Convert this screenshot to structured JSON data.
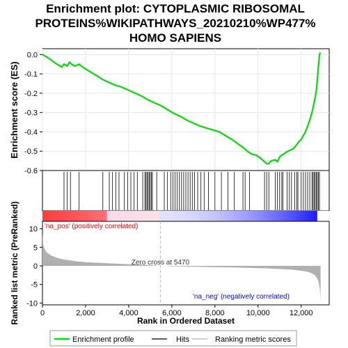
{
  "title_lines": [
    "Enrichment plot: CYTOPLASMIC RIBOSOMAL",
    "PROTEINS%WIKIPATHWAYS_20210210%WP477%",
    "HOMO SAPIENS"
  ],
  "colors": {
    "es_line": "#00dd00",
    "hits": "#000000",
    "metric_fill": "#b0b0b0",
    "pos_label": "#ff0000",
    "neg_label": "#0000ff",
    "grid": "#e6e6e6",
    "zero_cross": "#bbbbbb"
  },
  "chart_data": {
    "type": "line",
    "xlabel": "Rank in Ordered Dataset",
    "x_ticks": [
      0,
      2000,
      4000,
      6000,
      8000,
      10000,
      12000
    ],
    "x_tick_labels": [
      "0",
      "2,000",
      "4,000",
      "6,000",
      "8,000",
      "10,000",
      "12,000"
    ],
    "xlim": [
      0,
      13300
    ],
    "es_panel": {
      "ylabel": "Enrichment score (ES)",
      "ylim": [
        -0.6,
        0.03
      ],
      "y_ticks": [
        0.0,
        -0.1,
        -0.2,
        -0.3,
        -0.4,
        -0.5,
        -0.6
      ],
      "y_tick_labels": [
        "0.0",
        "-0.1",
        "-0.2",
        "-0.3",
        "-0.4",
        "-0.5",
        "-0.6"
      ],
      "series": [
        {
          "name": "Enrichment profile",
          "x": [
            0,
            300,
            600,
            900,
            1000,
            1150,
            1250,
            1350,
            1500,
            1700,
            1800,
            2000,
            2300,
            2600,
            2800,
            3000,
            3200,
            3400,
            3600,
            3800,
            4000,
            4300,
            4600,
            4900,
            5200,
            5500,
            5800,
            6100,
            6400,
            6700,
            7000,
            7300,
            7600,
            7900,
            8200,
            8500,
            8800,
            9100,
            9300,
            9500,
            9700,
            9900,
            10100,
            10300,
            10400,
            10500,
            10600,
            10800,
            10900,
            11000,
            11100,
            11200,
            11300,
            11400,
            11500,
            11600,
            11700,
            11800,
            11900,
            12000,
            12100,
            12200,
            12300,
            12400,
            12500,
            12600,
            12700,
            12750,
            12800,
            12850,
            12900
          ],
          "y": [
            0.0,
            -0.02,
            -0.045,
            -0.065,
            -0.05,
            -0.06,
            -0.04,
            -0.05,
            -0.06,
            -0.05,
            -0.06,
            -0.075,
            -0.095,
            -0.115,
            -0.13,
            -0.14,
            -0.15,
            -0.16,
            -0.165,
            -0.175,
            -0.185,
            -0.2,
            -0.215,
            -0.235,
            -0.25,
            -0.265,
            -0.285,
            -0.305,
            -0.32,
            -0.34,
            -0.355,
            -0.37,
            -0.38,
            -0.39,
            -0.4,
            -0.42,
            -0.44,
            -0.465,
            -0.48,
            -0.5,
            -0.515,
            -0.52,
            -0.535,
            -0.555,
            -0.565,
            -0.565,
            -0.55,
            -0.545,
            -0.555,
            -0.53,
            -0.52,
            -0.515,
            -0.505,
            -0.5,
            -0.495,
            -0.49,
            -0.48,
            -0.465,
            -0.45,
            -0.44,
            -0.42,
            -0.4,
            -0.37,
            -0.34,
            -0.3,
            -0.25,
            -0.19,
            -0.13,
            -0.06,
            0.0,
            0.01
          ]
        }
      ]
    },
    "hits": [
      1000,
      1150,
      1300,
      1700,
      2800,
      3100,
      3250,
      3400,
      3550,
      3800,
      3950,
      4100,
      4250,
      4400,
      4650,
      4750,
      4800,
      4850,
      4900,
      4950,
      5000,
      5050,
      5100,
      5300,
      5650,
      5800,
      5950,
      6050,
      6150,
      6250,
      6350,
      6450,
      6550,
      6650,
      6750,
      6850,
      6950,
      7050,
      7200,
      7350,
      7500,
      7700,
      8000,
      8300,
      8600,
      8900,
      9300,
      9400,
      9600,
      10300,
      10400,
      10500,
      10800,
      10900,
      11000,
      11100,
      11150,
      11350,
      11450,
      11550,
      11700,
      11800,
      11850,
      12000,
      12100,
      12200,
      12300,
      12400,
      12500,
      12550,
      12600,
      12650,
      12700,
      12750,
      12800,
      12850
    ],
    "metric_panel": {
      "ylabel": "Ranked list metric (PreRanked)",
      "ylim": [
        -10.5,
        12
      ],
      "y_ticks": [
        10,
        5,
        0,
        -5,
        -10
      ],
      "y_tick_labels": [
        "10",
        "5",
        "0",
        "-5",
        "-10"
      ],
      "zero_cross_rank": 5470,
      "zero_cross_label": "Zero cross at 5470",
      "pos_label": "'na_pos' (positively correlated)",
      "neg_label": "'na_neg' (negatively correlated)",
      "series": [
        {
          "name": "Ranking metric scores",
          "x": [
            0,
            30,
            100,
            200,
            400,
            700,
            1000,
            1500,
            2000,
            3000,
            4000,
            5000,
            5470,
            6000,
            7000,
            8000,
            9000,
            10000,
            10500,
            11000,
            11500,
            12000,
            12300,
            12500,
            12650,
            12750,
            12820,
            12870,
            12900
          ],
          "y": [
            9,
            6,
            4.5,
            3.6,
            2.8,
            2.1,
            1.7,
            1.3,
            1.0,
            0.7,
            0.45,
            0.2,
            0.0,
            -0.1,
            -0.25,
            -0.35,
            -0.45,
            -0.6,
            -0.7,
            -0.85,
            -1.0,
            -1.3,
            -1.6,
            -2.0,
            -2.6,
            -3.4,
            -4.5,
            -6.5,
            -9.3
          ]
        }
      ]
    },
    "legend": {
      "placement": "bottom",
      "entries": [
        "Enrichment profile",
        "Hits",
        "Ranking metric scores"
      ]
    }
  }
}
